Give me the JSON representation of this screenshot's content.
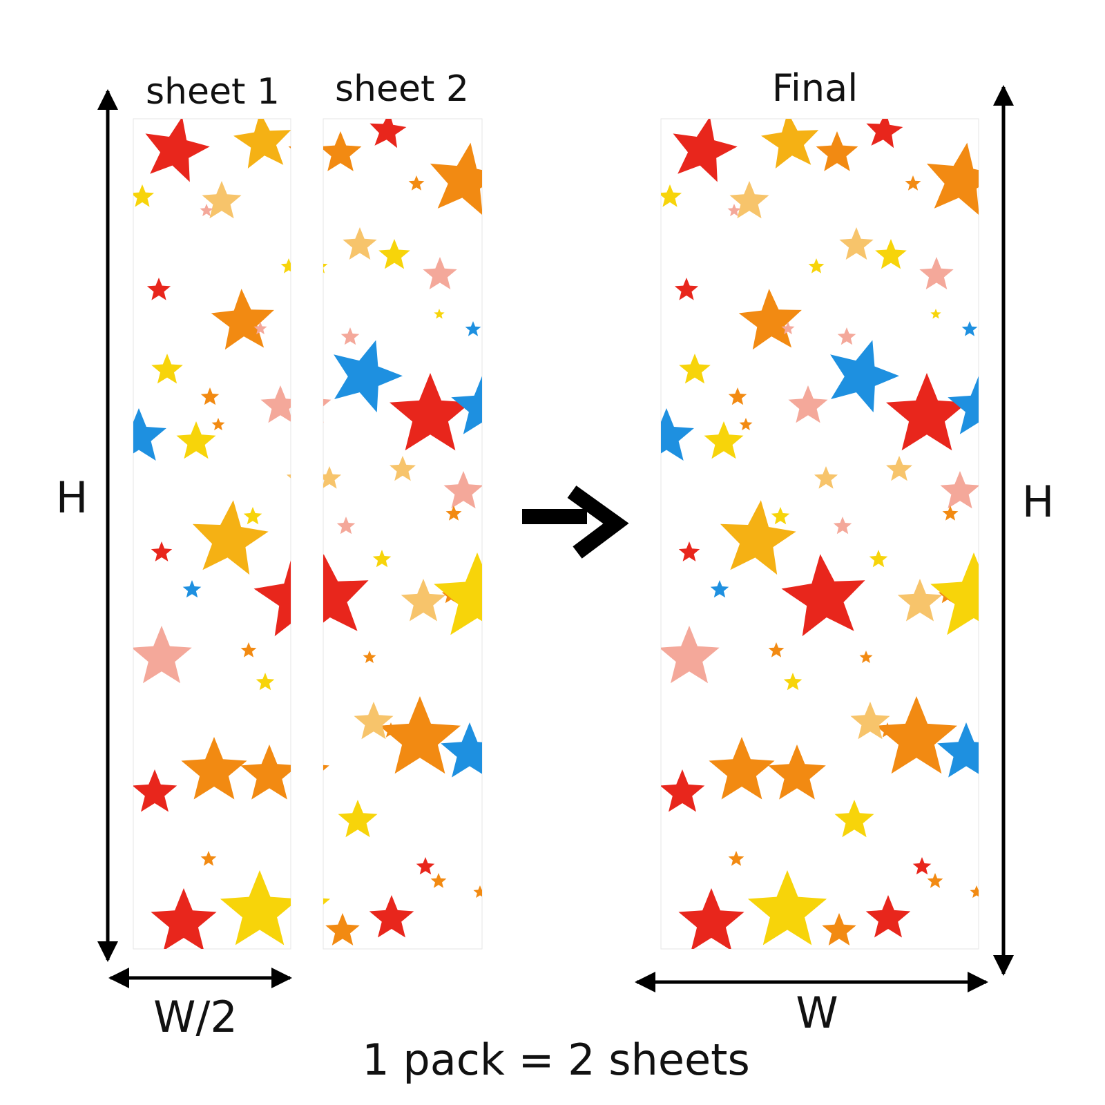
{
  "labels": {
    "sheet1": "sheet 1",
    "sheet2": "sheet 2",
    "final": "Final",
    "height_left": "H",
    "height_right": "H",
    "width_half": "W/2",
    "width_full": "W",
    "caption": "1 pack = 2 sheets"
  },
  "colors": {
    "red": "#e8261c",
    "orange": "#f28a12",
    "yellow": "#f7d40a",
    "gold": "#f5b114",
    "light_orange": "#f7c46b",
    "pink": "#f4a89a",
    "blue": "#1e90e0",
    "ink": "#000000"
  },
  "icons": {
    "arrow": "right-arrow-icon",
    "star": "star-icon"
  }
}
